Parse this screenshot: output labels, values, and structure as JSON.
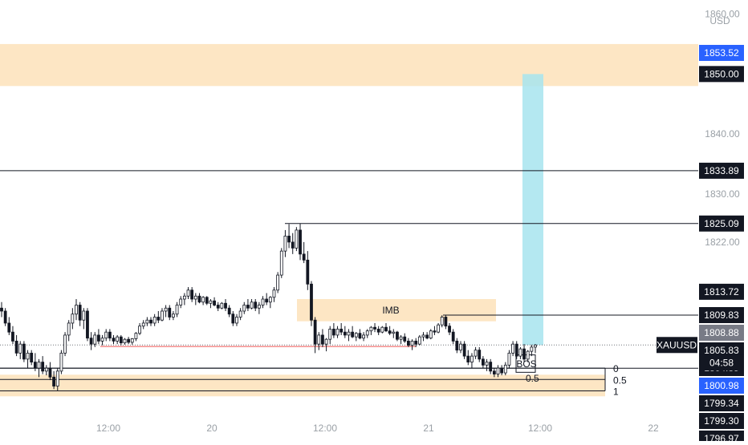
{
  "chart_data": {
    "type": "candlestick",
    "symbol": "XAUUSD",
    "currency": "USD",
    "countdown": "04:58",
    "ylim": [
      1795,
      1861
    ],
    "price_ticks": [
      "1860.00",
      "1840.00",
      "1830.00",
      "1822.00"
    ],
    "time_ticks": [
      "12:00",
      "20",
      "12:00",
      "21",
      "12:00",
      "22"
    ],
    "price_levels": [
      {
        "value": 1853.52,
        "label": "1853.52",
        "style": "blue"
      },
      {
        "value": 1850.0,
        "label": "1850.00",
        "style": "black"
      },
      {
        "value": 1833.89,
        "label": "1833.89",
        "style": "black"
      },
      {
        "value": 1825.09,
        "label": "1825.09",
        "style": "black"
      },
      {
        "value": 1813.72,
        "label": "1813.72",
        "style": "black"
      },
      {
        "value": 1809.83,
        "label": "1809.83",
        "style": "black"
      },
      {
        "value": 1808.88,
        "label": "1808.88",
        "style": "grey"
      },
      {
        "value": 1805.83,
        "label": "1805.83",
        "style": "black"
      },
      {
        "value": 1804.85,
        "label": "1804.85",
        "style": "black"
      },
      {
        "value": 1800.98,
        "label": "1800.98",
        "style": "blue"
      },
      {
        "value": 1799.34,
        "label": "1799.34",
        "style": "black"
      },
      {
        "value": 1799.3,
        "label": "1799.30",
        "style": "black"
      },
      {
        "value": 1796.97,
        "label": "1796.97",
        "style": "black"
      }
    ],
    "zones": [
      {
        "name": "supply-zone",
        "y_top": 1855.0,
        "y_bottom": 1848.0
      },
      {
        "name": "imb-zone",
        "label": "IMB",
        "y_top": 1812.5,
        "y_bottom": 1808.8
      },
      {
        "name": "demand-zone",
        "y_top": 1799.9,
        "y_bottom": 1796.3
      }
    ],
    "fib_levels": [
      {
        "label": "0",
        "value": 1801.0
      },
      {
        "label": "0.5",
        "value": 1799.1
      },
      {
        "label": "1",
        "value": 1797.2
      }
    ],
    "annotations": [
      "IMB",
      "BOS",
      "0.5"
    ],
    "colors": {
      "up": "#26a69a",
      "down": "#ef5350",
      "candle": "#131722",
      "zone": "#fde6c4",
      "target": "#a7e4ee",
      "blue_label": "#2962ff",
      "red_line": "#ef5350"
    },
    "candles": [
      [
        1811.0,
        1812.0,
        1809.5,
        1810.5
      ],
      [
        1810.5,
        1811.0,
        1808.0,
        1808.5
      ],
      [
        1808.5,
        1809.5,
        1806.5,
        1807.0
      ],
      [
        1807.0,
        1808.0,
        1805.0,
        1805.5
      ],
      [
        1805.5,
        1806.5,
        1803.0,
        1803.5
      ],
      [
        1803.5,
        1805.5,
        1802.5,
        1805.0
      ],
      [
        1805.0,
        1805.5,
        1802.0,
        1802.5
      ],
      [
        1802.5,
        1804.0,
        1801.0,
        1803.5
      ],
      [
        1803.5,
        1804.0,
        1801.5,
        1802.0
      ],
      [
        1802.0,
        1803.5,
        1800.5,
        1801.0
      ],
      [
        1801.0,
        1802.5,
        1799.5,
        1802.0
      ],
      [
        1802.0,
        1803.0,
        1800.0,
        1800.5
      ],
      [
        1800.5,
        1801.5,
        1799.8,
        1801.0
      ],
      [
        1801.0,
        1802.0,
        1799.0,
        1799.5
      ],
      [
        1799.5,
        1800.5,
        1797.5,
        1798.0
      ],
      [
        1798.0,
        1801.0,
        1797.2,
        1800.5
      ],
      [
        1800.5,
        1804.0,
        1800.0,
        1803.5
      ],
      [
        1803.5,
        1807.0,
        1803.0,
        1806.5
      ],
      [
        1806.5,
        1809.0,
        1805.5,
        1808.5
      ],
      [
        1808.5,
        1811.0,
        1807.5,
        1810.0
      ],
      [
        1810.0,
        1812.5,
        1809.0,
        1811.5
      ],
      [
        1811.5,
        1812.0,
        1808.0,
        1809.0
      ],
      [
        1809.0,
        1811.0,
        1807.5,
        1810.5
      ],
      [
        1810.5,
        1811.0,
        1805.5,
        1806.0
      ],
      [
        1806.0,
        1807.0,
        1804.0,
        1805.0
      ],
      [
        1805.0,
        1807.0,
        1804.5,
        1806.5
      ],
      [
        1806.5,
        1807.5,
        1805.0,
        1805.5
      ],
      [
        1805.5,
        1806.5,
        1804.8,
        1806.0
      ],
      [
        1806.0,
        1807.5,
        1805.5,
        1807.0
      ],
      [
        1807.0,
        1807.5,
        1805.5,
        1806.0
      ],
      [
        1806.0,
        1806.5,
        1805.0,
        1805.5
      ],
      [
        1805.5,
        1806.5,
        1805.0,
        1806.2
      ],
      [
        1806.2,
        1806.5,
        1804.8,
        1805.2
      ],
      [
        1805.2,
        1806.0,
        1804.9,
        1805.8
      ],
      [
        1805.8,
        1806.2,
        1805.0,
        1805.3
      ],
      [
        1805.3,
        1806.0,
        1804.9,
        1805.9
      ],
      [
        1805.9,
        1807.0,
        1805.5,
        1806.8
      ],
      [
        1806.8,
        1808.5,
        1806.5,
        1808.0
      ],
      [
        1808.0,
        1809.0,
        1807.5,
        1808.5
      ],
      [
        1808.5,
        1809.5,
        1808.0,
        1809.0
      ],
      [
        1809.0,
        1809.5,
        1808.0,
        1808.5
      ],
      [
        1808.5,
        1810.0,
        1808.0,
        1809.5
      ],
      [
        1809.5,
        1810.5,
        1808.5,
        1809.0
      ],
      [
        1809.0,
        1811.0,
        1808.8,
        1810.5
      ],
      [
        1810.5,
        1811.5,
        1809.5,
        1811.0
      ],
      [
        1811.0,
        1811.5,
        1809.0,
        1809.5
      ],
      [
        1809.5,
        1810.5,
        1809.0,
        1810.0
      ],
      [
        1810.0,
        1812.0,
        1809.5,
        1811.5
      ],
      [
        1811.5,
        1813.0,
        1811.0,
        1812.5
      ],
      [
        1812.5,
        1813.5,
        1811.5,
        1813.0
      ],
      [
        1813.0,
        1814.5,
        1812.5,
        1814.0
      ],
      [
        1814.0,
        1814.5,
        1812.0,
        1812.5
      ],
      [
        1812.5,
        1813.5,
        1811.5,
        1813.0
      ],
      [
        1813.0,
        1813.5,
        1811.8,
        1812.0
      ],
      [
        1812.0,
        1813.0,
        1811.5,
        1812.8
      ],
      [
        1812.8,
        1813.0,
        1811.5,
        1811.8
      ],
      [
        1811.8,
        1812.5,
        1811.0,
        1812.2
      ],
      [
        1812.2,
        1812.8,
        1811.3,
        1811.5
      ],
      [
        1811.5,
        1812.0,
        1810.5,
        1811.0
      ],
      [
        1811.0,
        1812.0,
        1810.8,
        1811.8
      ],
      [
        1811.8,
        1812.5,
        1810.5,
        1811.0
      ],
      [
        1811.0,
        1811.5,
        1809.5,
        1810.0
      ],
      [
        1810.0,
        1810.5,
        1808.0,
        1808.5
      ],
      [
        1808.5,
        1810.0,
        1808.0,
        1809.5
      ],
      [
        1809.5,
        1811.0,
        1809.0,
        1810.5
      ],
      [
        1810.5,
        1812.0,
        1810.0,
        1811.5
      ],
      [
        1811.5,
        1812.5,
        1810.5,
        1811.0
      ],
      [
        1811.0,
        1812.5,
        1810.8,
        1812.0
      ],
      [
        1812.0,
        1812.5,
        1810.5,
        1811.0
      ],
      [
        1811.0,
        1812.0,
        1810.0,
        1811.5
      ],
      [
        1811.5,
        1813.0,
        1811.0,
        1812.5
      ],
      [
        1812.5,
        1813.5,
        1811.5,
        1812.0
      ],
      [
        1812.0,
        1813.0,
        1811.0,
        1812.8
      ],
      [
        1812.8,
        1814.5,
        1812.0,
        1814.0
      ],
      [
        1814.0,
        1817.0,
        1813.5,
        1816.5
      ],
      [
        1816.5,
        1821.0,
        1816.0,
        1820.5
      ],
      [
        1820.5,
        1824.0,
        1819.5,
        1823.0
      ],
      [
        1823.0,
        1825.0,
        1821.0,
        1822.0
      ],
      [
        1822.0,
        1823.5,
        1820.0,
        1821.0
      ],
      [
        1821.0,
        1824.5,
        1820.5,
        1824.0
      ],
      [
        1824.0,
        1825.09,
        1819.0,
        1820.0
      ],
      [
        1820.0,
        1822.0,
        1818.5,
        1819.0
      ],
      [
        1819.0,
        1820.5,
        1814.0,
        1815.0
      ],
      [
        1815.0,
        1815.5,
        1808.0,
        1809.0
      ],
      [
        1809.0,
        1809.5,
        1803.5,
        1805.0
      ],
      [
        1805.0,
        1807.0,
        1804.0,
        1806.5
      ],
      [
        1806.5,
        1807.5,
        1804.5,
        1805.0
      ],
      [
        1805.0,
        1806.0,
        1803.8,
        1805.8
      ],
      [
        1805.8,
        1808.0,
        1805.0,
        1807.5
      ],
      [
        1807.5,
        1808.5,
        1806.0,
        1806.5
      ],
      [
        1806.5,
        1808.0,
        1806.0,
        1807.5
      ],
      [
        1807.5,
        1808.5,
        1806.5,
        1807.0
      ],
      [
        1807.0,
        1808.0,
        1806.0,
        1806.5
      ],
      [
        1806.5,
        1807.5,
        1805.5,
        1807.0
      ],
      [
        1807.0,
        1808.0,
        1806.0,
        1806.2
      ],
      [
        1806.2,
        1807.0,
        1805.5,
        1806.8
      ],
      [
        1806.8,
        1807.5,
        1805.8,
        1806.0
      ],
      [
        1806.0,
        1807.0,
        1805.5,
        1806.5
      ],
      [
        1806.5,
        1807.5,
        1806.0,
        1807.2
      ],
      [
        1807.2,
        1808.0,
        1806.5,
        1807.8
      ],
      [
        1807.8,
        1808.5,
        1807.0,
        1807.5
      ],
      [
        1807.5,
        1808.0,
        1806.5,
        1807.0
      ],
      [
        1807.0,
        1808.0,
        1806.8,
        1807.8
      ],
      [
        1807.8,
        1808.5,
        1807.0,
        1807.2
      ],
      [
        1807.2,
        1808.0,
        1806.5,
        1806.8
      ],
      [
        1806.8,
        1807.5,
        1806.0,
        1807.0
      ],
      [
        1807.0,
        1807.2,
        1805.5,
        1805.8
      ],
      [
        1805.8,
        1806.5,
        1805.0,
        1806.2
      ],
      [
        1806.2,
        1806.8,
        1805.2,
        1805.5
      ],
      [
        1805.5,
        1806.0,
        1804.5,
        1804.8
      ],
      [
        1804.8,
        1805.8,
        1804.0,
        1805.5
      ],
      [
        1805.5,
        1806.0,
        1804.5,
        1805.0
      ],
      [
        1805.0,
        1806.5,
        1804.8,
        1806.2
      ],
      [
        1806.2,
        1807.0,
        1805.5,
        1806.5
      ],
      [
        1806.5,
        1807.0,
        1805.8,
        1806.0
      ],
      [
        1806.0,
        1807.5,
        1805.8,
        1807.2
      ],
      [
        1807.2,
        1808.0,
        1806.5,
        1807.0
      ],
      [
        1807.0,
        1808.5,
        1806.8,
        1808.2
      ],
      [
        1808.2,
        1809.8,
        1807.8,
        1809.5
      ],
      [
        1809.5,
        1809.8,
        1807.5,
        1808.0
      ],
      [
        1808.0,
        1808.5,
        1806.5,
        1807.0
      ],
      [
        1807.0,
        1807.5,
        1805.0,
        1805.5
      ],
      [
        1805.5,
        1806.0,
        1803.5,
        1804.0
      ],
      [
        1804.0,
        1805.5,
        1803.5,
        1805.0
      ],
      [
        1805.0,
        1805.5,
        1802.5,
        1803.0
      ],
      [
        1803.0,
        1804.0,
        1801.5,
        1802.0
      ],
      [
        1802.0,
        1803.5,
        1801.0,
        1803.0
      ],
      [
        1803.0,
        1804.5,
        1802.5,
        1804.0
      ],
      [
        1804.0,
        1804.5,
        1802.0,
        1802.5
      ],
      [
        1802.5,
        1803.0,
        1801.0,
        1801.5
      ],
      [
        1801.5,
        1802.5,
        1800.5,
        1802.0
      ],
      [
        1802.0,
        1802.5,
        1800.0,
        1800.5
      ],
      [
        1800.5,
        1801.0,
        1799.5,
        1800.0
      ],
      [
        1800.0,
        1801.5,
        1799.5,
        1801.0
      ],
      [
        1801.0,
        1801.5,
        1799.8,
        1800.2
      ],
      [
        1800.2,
        1802.0,
        1799.8,
        1801.5
      ],
      [
        1801.5,
        1804.0,
        1801.0,
        1803.5
      ],
      [
        1803.5,
        1805.5,
        1803.0,
        1805.0
      ],
      [
        1805.0,
        1805.5,
        1802.5,
        1803.0
      ],
      [
        1803.0,
        1804.5,
        1802.5,
        1804.2
      ],
      [
        1804.2,
        1805.0,
        1802.0,
        1802.5
      ],
      [
        1802.5,
        1804.0,
        1802.0,
        1803.8
      ],
      [
        1803.8,
        1804.9,
        1803.0,
        1804.5
      ],
      [
        1804.5,
        1805.0,
        1803.5,
        1804.85
      ]
    ]
  }
}
